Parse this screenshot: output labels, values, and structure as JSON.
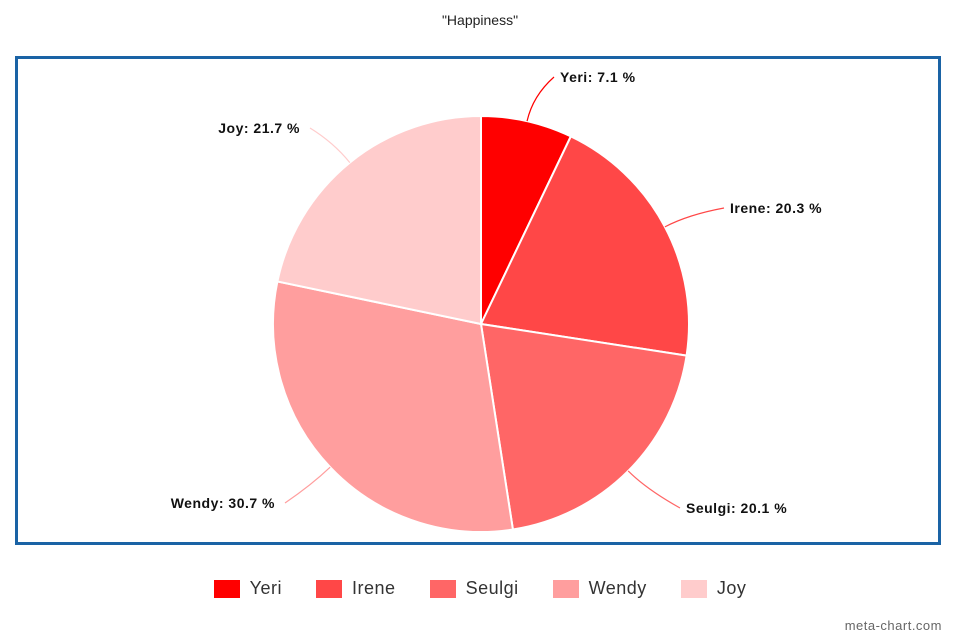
{
  "chart_data": {
    "type": "pie",
    "title": "\"Happiness\"",
    "categories": [
      "Yeri",
      "Irene",
      "Seulgi",
      "Wendy",
      "Joy"
    ],
    "values": [
      7.1,
      20.3,
      20.1,
      30.7,
      21.7
    ],
    "labels": [
      "Yeri: 7.1 %",
      "Irene: 20.3 %",
      "Seulgi: 20.1 %",
      "Wendy: 30.7 %",
      "Joy: 21.7 %"
    ],
    "colors": [
      "#ff0000",
      "#ff4747",
      "#ff6666",
      "#ff9e9e",
      "#ffcccc"
    ],
    "legend_position": "bottom",
    "start_angle": "top, clockwise"
  },
  "watermark": "meta-chart.com"
}
